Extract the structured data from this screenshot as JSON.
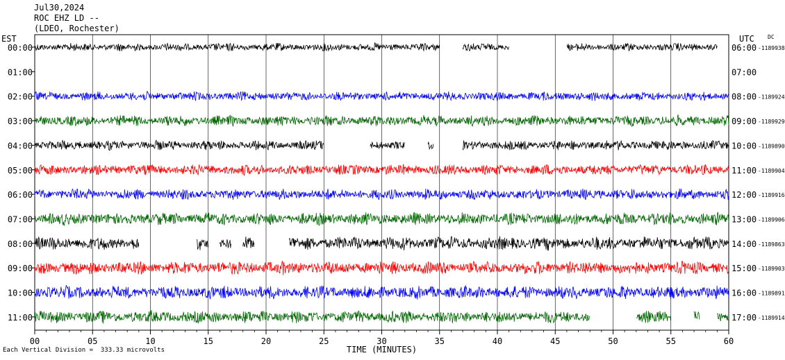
{
  "header": {
    "date": "Jul30,2024",
    "channel": "ROC EHZ LD --",
    "network": "(LDEO, Rochester)"
  },
  "labels": {
    "left_zone": "EST",
    "right_zone": "UTC",
    "dc_marker": "DC",
    "footer": "Each Vertical Division =  333.33 microvolts"
  },
  "colors": {
    "black": "#000000",
    "blue": "#0000ff",
    "green": "#006400",
    "red": "#ff0000",
    "grid": "#000000"
  },
  "chart_data": {
    "type": "line",
    "title": "",
    "xlabel": "TIME (MINUTES)",
    "ylabel": "",
    "xlim": [
      0,
      60
    ],
    "xticks": [
      "00",
      "05",
      "10",
      "15",
      "20",
      "25",
      "30",
      "35",
      "40",
      "45",
      "50",
      "55",
      "60"
    ],
    "traces": [
      {
        "est": "00:00",
        "utc": "06:00",
        "dc": "-1189938",
        "color": "black",
        "segments": [
          [
            0,
            35
          ],
          [
            37,
            41
          ],
          [
            46,
            59
          ]
        ],
        "amp": 0.45
      },
      {
        "est": "01:00",
        "utc": "07:00",
        "dc": "",
        "color": "red",
        "segments": [],
        "amp": 0
      },
      {
        "est": "02:00",
        "utc": "08:00",
        "dc": "-1189924",
        "color": "blue",
        "segments": [
          [
            0,
            60
          ]
        ],
        "amp": 0.5
      },
      {
        "est": "03:00",
        "utc": "09:00",
        "dc": "-1189929",
        "color": "green",
        "segments": [
          [
            0,
            60
          ]
        ],
        "amp": 0.6
      },
      {
        "est": "04:00",
        "utc": "10:00",
        "dc": "-1189890",
        "color": "black",
        "segments": [
          [
            0,
            25
          ],
          [
            29,
            32
          ],
          [
            34,
            34.5
          ],
          [
            37,
            60
          ]
        ],
        "amp": 0.55
      },
      {
        "est": "05:00",
        "utc": "11:00",
        "dc": "-1189904",
        "color": "red",
        "segments": [
          [
            0,
            60
          ]
        ],
        "amp": 0.6
      },
      {
        "est": "06:00",
        "utc": "12:00",
        "dc": "-1189916",
        "color": "blue",
        "segments": [
          [
            0,
            60
          ]
        ],
        "amp": 0.6
      },
      {
        "est": "07:00",
        "utc": "13:00",
        "dc": "-1189906",
        "color": "green",
        "segments": [
          [
            0,
            60
          ]
        ],
        "amp": 0.7
      },
      {
        "est": "08:00",
        "utc": "14:00",
        "dc": "-1189863",
        "color": "black",
        "segments": [
          [
            0,
            9
          ],
          [
            14,
            15
          ],
          [
            16,
            17
          ],
          [
            18,
            19
          ],
          [
            22,
            60
          ]
        ],
        "amp": 0.75
      },
      {
        "est": "09:00",
        "utc": "15:00",
        "dc": "-1189903",
        "color": "red",
        "segments": [
          [
            0,
            60
          ]
        ],
        "amp": 0.75
      },
      {
        "est": "10:00",
        "utc": "16:00",
        "dc": "-1189891",
        "color": "blue",
        "segments": [
          [
            0,
            60
          ]
        ],
        "amp": 0.75
      },
      {
        "est": "11:00",
        "utc": "17:00",
        "dc": "-1189914",
        "color": "green",
        "segments": [
          [
            0,
            48
          ],
          [
            52,
            55
          ],
          [
            57,
            57.5
          ],
          [
            59,
            60
          ]
        ],
        "amp": 0.7
      }
    ]
  }
}
